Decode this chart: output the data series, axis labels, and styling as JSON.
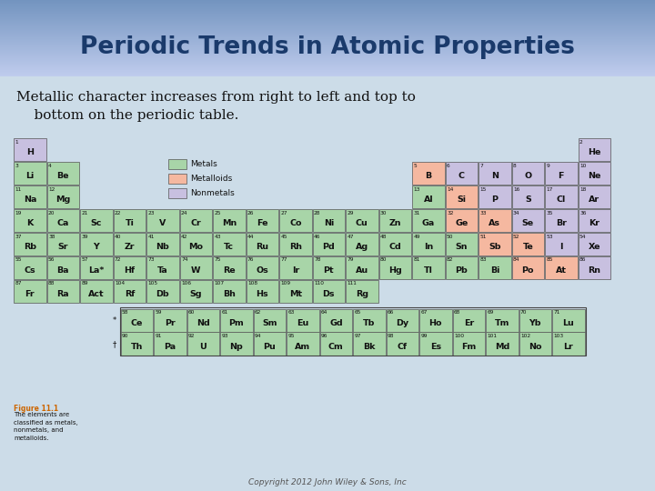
{
  "title": "Periodic Trends in Atomic Properties",
  "subtitle_line1": "Metallic character increases from right to left and top to",
  "subtitle_line2": "    bottom on the periodic table.",
  "title_color": "#1a3a6b",
  "subtitle_color": "#111111",
  "metal_color": "#a8d5a8",
  "metalloid_color": "#f5b8a0",
  "nonmetal_color": "#c8c0e0",
  "copyright": "Copyright 2012 John Wiley & Sons, Inc",
  "elements": [
    {
      "num": "1",
      "sym": "H",
      "row": 1,
      "col": 1,
      "type": "nonmetal"
    },
    {
      "num": "2",
      "sym": "He",
      "row": 1,
      "col": 18,
      "type": "nonmetal"
    },
    {
      "num": "3",
      "sym": "Li",
      "row": 2,
      "col": 1,
      "type": "metal"
    },
    {
      "num": "4",
      "sym": "Be",
      "row": 2,
      "col": 2,
      "type": "metal"
    },
    {
      "num": "5",
      "sym": "B",
      "row": 2,
      "col": 13,
      "type": "metalloid"
    },
    {
      "num": "6",
      "sym": "C",
      "row": 2,
      "col": 14,
      "type": "nonmetal"
    },
    {
      "num": "7",
      "sym": "N",
      "row": 2,
      "col": 15,
      "type": "nonmetal"
    },
    {
      "num": "8",
      "sym": "O",
      "row": 2,
      "col": 16,
      "type": "nonmetal"
    },
    {
      "num": "9",
      "sym": "F",
      "row": 2,
      "col": 17,
      "type": "nonmetal"
    },
    {
      "num": "10",
      "sym": "Ne",
      "row": 2,
      "col": 18,
      "type": "nonmetal"
    },
    {
      "num": "11",
      "sym": "Na",
      "row": 3,
      "col": 1,
      "type": "metal"
    },
    {
      "num": "12",
      "sym": "Mg",
      "row": 3,
      "col": 2,
      "type": "metal"
    },
    {
      "num": "13",
      "sym": "Al",
      "row": 3,
      "col": 13,
      "type": "metal"
    },
    {
      "num": "14",
      "sym": "Si",
      "row": 3,
      "col": 14,
      "type": "metalloid"
    },
    {
      "num": "15",
      "sym": "P",
      "row": 3,
      "col": 15,
      "type": "nonmetal"
    },
    {
      "num": "16",
      "sym": "S",
      "row": 3,
      "col": 16,
      "type": "nonmetal"
    },
    {
      "num": "17",
      "sym": "Cl",
      "row": 3,
      "col": 17,
      "type": "nonmetal"
    },
    {
      "num": "18",
      "sym": "Ar",
      "row": 3,
      "col": 18,
      "type": "nonmetal"
    },
    {
      "num": "19",
      "sym": "K",
      "row": 4,
      "col": 1,
      "type": "metal"
    },
    {
      "num": "20",
      "sym": "Ca",
      "row": 4,
      "col": 2,
      "type": "metal"
    },
    {
      "num": "21",
      "sym": "Sc",
      "row": 4,
      "col": 3,
      "type": "metal"
    },
    {
      "num": "22",
      "sym": "Ti",
      "row": 4,
      "col": 4,
      "type": "metal"
    },
    {
      "num": "23",
      "sym": "V",
      "row": 4,
      "col": 5,
      "type": "metal"
    },
    {
      "num": "24",
      "sym": "Cr",
      "row": 4,
      "col": 6,
      "type": "metal"
    },
    {
      "num": "25",
      "sym": "Mn",
      "row": 4,
      "col": 7,
      "type": "metal"
    },
    {
      "num": "26",
      "sym": "Fe",
      "row": 4,
      "col": 8,
      "type": "metal"
    },
    {
      "num": "27",
      "sym": "Co",
      "row": 4,
      "col": 9,
      "type": "metal"
    },
    {
      "num": "28",
      "sym": "Ni",
      "row": 4,
      "col": 10,
      "type": "metal"
    },
    {
      "num": "29",
      "sym": "Cu",
      "row": 4,
      "col": 11,
      "type": "metal"
    },
    {
      "num": "30",
      "sym": "Zn",
      "row": 4,
      "col": 12,
      "type": "metal"
    },
    {
      "num": "31",
      "sym": "Ga",
      "row": 4,
      "col": 13,
      "type": "metal"
    },
    {
      "num": "32",
      "sym": "Ge",
      "row": 4,
      "col": 14,
      "type": "metalloid"
    },
    {
      "num": "33",
      "sym": "As",
      "row": 4,
      "col": 15,
      "type": "metalloid"
    },
    {
      "num": "34",
      "sym": "Se",
      "row": 4,
      "col": 16,
      "type": "nonmetal"
    },
    {
      "num": "35",
      "sym": "Br",
      "row": 4,
      "col": 17,
      "type": "nonmetal"
    },
    {
      "num": "36",
      "sym": "Kr",
      "row": 4,
      "col": 18,
      "type": "nonmetal"
    },
    {
      "num": "37",
      "sym": "Rb",
      "row": 5,
      "col": 1,
      "type": "metal"
    },
    {
      "num": "38",
      "sym": "Sr",
      "row": 5,
      "col": 2,
      "type": "metal"
    },
    {
      "num": "39",
      "sym": "Y",
      "row": 5,
      "col": 3,
      "type": "metal"
    },
    {
      "num": "40",
      "sym": "Zr",
      "row": 5,
      "col": 4,
      "type": "metal"
    },
    {
      "num": "41",
      "sym": "Nb",
      "row": 5,
      "col": 5,
      "type": "metal"
    },
    {
      "num": "42",
      "sym": "Mo",
      "row": 5,
      "col": 6,
      "type": "metal"
    },
    {
      "num": "43",
      "sym": "Tc",
      "row": 5,
      "col": 7,
      "type": "metal"
    },
    {
      "num": "44",
      "sym": "Ru",
      "row": 5,
      "col": 8,
      "type": "metal"
    },
    {
      "num": "45",
      "sym": "Rh",
      "row": 5,
      "col": 9,
      "type": "metal"
    },
    {
      "num": "46",
      "sym": "Pd",
      "row": 5,
      "col": 10,
      "type": "metal"
    },
    {
      "num": "47",
      "sym": "Ag",
      "row": 5,
      "col": 11,
      "type": "metal"
    },
    {
      "num": "48",
      "sym": "Cd",
      "row": 5,
      "col": 12,
      "type": "metal"
    },
    {
      "num": "49",
      "sym": "In",
      "row": 5,
      "col": 13,
      "type": "metal"
    },
    {
      "num": "50",
      "sym": "Sn",
      "row": 5,
      "col": 14,
      "type": "metal"
    },
    {
      "num": "51",
      "sym": "Sb",
      "row": 5,
      "col": 15,
      "type": "metalloid"
    },
    {
      "num": "52",
      "sym": "Te",
      "row": 5,
      "col": 16,
      "type": "metalloid"
    },
    {
      "num": "53",
      "sym": "I",
      "row": 5,
      "col": 17,
      "type": "nonmetal"
    },
    {
      "num": "54",
      "sym": "Xe",
      "row": 5,
      "col": 18,
      "type": "nonmetal"
    },
    {
      "num": "55",
      "sym": "Cs",
      "row": 6,
      "col": 1,
      "type": "metal"
    },
    {
      "num": "56",
      "sym": "Ba",
      "row": 6,
      "col": 2,
      "type": "metal"
    },
    {
      "num": "57",
      "sym": "La*",
      "row": 6,
      "col": 3,
      "type": "metal"
    },
    {
      "num": "72",
      "sym": "Hf",
      "row": 6,
      "col": 4,
      "type": "metal"
    },
    {
      "num": "73",
      "sym": "Ta",
      "row": 6,
      "col": 5,
      "type": "metal"
    },
    {
      "num": "74",
      "sym": "W",
      "row": 6,
      "col": 6,
      "type": "metal"
    },
    {
      "num": "75",
      "sym": "Re",
      "row": 6,
      "col": 7,
      "type": "metal"
    },
    {
      "num": "76",
      "sym": "Os",
      "row": 6,
      "col": 8,
      "type": "metal"
    },
    {
      "num": "77",
      "sym": "Ir",
      "row": 6,
      "col": 9,
      "type": "metal"
    },
    {
      "num": "78",
      "sym": "Pt",
      "row": 6,
      "col": 10,
      "type": "metal"
    },
    {
      "num": "79",
      "sym": "Au",
      "row": 6,
      "col": 11,
      "type": "metal"
    },
    {
      "num": "80",
      "sym": "Hg",
      "row": 6,
      "col": 12,
      "type": "metal"
    },
    {
      "num": "81",
      "sym": "Tl",
      "row": 6,
      "col": 13,
      "type": "metal"
    },
    {
      "num": "82",
      "sym": "Pb",
      "row": 6,
      "col": 14,
      "type": "metal"
    },
    {
      "num": "83",
      "sym": "Bi",
      "row": 6,
      "col": 15,
      "type": "metal"
    },
    {
      "num": "84",
      "sym": "Po",
      "row": 6,
      "col": 16,
      "type": "metalloid"
    },
    {
      "num": "85",
      "sym": "At",
      "row": 6,
      "col": 17,
      "type": "metalloid"
    },
    {
      "num": "86",
      "sym": "Rn",
      "row": 6,
      "col": 18,
      "type": "nonmetal"
    },
    {
      "num": "87",
      "sym": "Fr",
      "row": 7,
      "col": 1,
      "type": "metal"
    },
    {
      "num": "88",
      "sym": "Ra",
      "row": 7,
      "col": 2,
      "type": "metal"
    },
    {
      "num": "89",
      "sym": "Act",
      "row": 7,
      "col": 3,
      "type": "metal"
    },
    {
      "num": "104",
      "sym": "Rf",
      "row": 7,
      "col": 4,
      "type": "metal"
    },
    {
      "num": "105",
      "sym": "Db",
      "row": 7,
      "col": 5,
      "type": "metal"
    },
    {
      "num": "106",
      "sym": "Sg",
      "row": 7,
      "col": 6,
      "type": "metal"
    },
    {
      "num": "107",
      "sym": "Bh",
      "row": 7,
      "col": 7,
      "type": "metal"
    },
    {
      "num": "108",
      "sym": "Hs",
      "row": 7,
      "col": 8,
      "type": "metal"
    },
    {
      "num": "109",
      "sym": "Mt",
      "row": 7,
      "col": 9,
      "type": "metal"
    },
    {
      "num": "110",
      "sym": "Ds",
      "row": 7,
      "col": 10,
      "type": "metal"
    },
    {
      "num": "111",
      "sym": "Rg",
      "row": 7,
      "col": 11,
      "type": "metal"
    },
    {
      "num": "58",
      "sym": "Ce",
      "row": 9,
      "col": 4,
      "type": "metal"
    },
    {
      "num": "59",
      "sym": "Pr",
      "row": 9,
      "col": 5,
      "type": "metal"
    },
    {
      "num": "60",
      "sym": "Nd",
      "row": 9,
      "col": 6,
      "type": "metal"
    },
    {
      "num": "61",
      "sym": "Pm",
      "row": 9,
      "col": 7,
      "type": "metal"
    },
    {
      "num": "62",
      "sym": "Sm",
      "row": 9,
      "col": 8,
      "type": "metal"
    },
    {
      "num": "63",
      "sym": "Eu",
      "row": 9,
      "col": 9,
      "type": "metal"
    },
    {
      "num": "64",
      "sym": "Gd",
      "row": 9,
      "col": 10,
      "type": "metal"
    },
    {
      "num": "65",
      "sym": "Tb",
      "row": 9,
      "col": 11,
      "type": "metal"
    },
    {
      "num": "66",
      "sym": "Dy",
      "row": 9,
      "col": 12,
      "type": "metal"
    },
    {
      "num": "67",
      "sym": "Ho",
      "row": 9,
      "col": 13,
      "type": "metal"
    },
    {
      "num": "68",
      "sym": "Er",
      "row": 9,
      "col": 14,
      "type": "metal"
    },
    {
      "num": "69",
      "sym": "Tm",
      "row": 9,
      "col": 15,
      "type": "metal"
    },
    {
      "num": "70",
      "sym": "Yb",
      "row": 9,
      "col": 16,
      "type": "metal"
    },
    {
      "num": "71",
      "sym": "Lu",
      "row": 9,
      "col": 17,
      "type": "metal"
    },
    {
      "num": "90",
      "sym": "Th",
      "row": 10,
      "col": 4,
      "type": "metal"
    },
    {
      "num": "91",
      "sym": "Pa",
      "row": 10,
      "col": 5,
      "type": "metal"
    },
    {
      "num": "92",
      "sym": "U",
      "row": 10,
      "col": 6,
      "type": "metal"
    },
    {
      "num": "93",
      "sym": "Np",
      "row": 10,
      "col": 7,
      "type": "metal"
    },
    {
      "num": "94",
      "sym": "Pu",
      "row": 10,
      "col": 8,
      "type": "metal"
    },
    {
      "num": "95",
      "sym": "Am",
      "row": 10,
      "col": 9,
      "type": "metal"
    },
    {
      "num": "96",
      "sym": "Cm",
      "row": 10,
      "col": 10,
      "type": "metal"
    },
    {
      "num": "97",
      "sym": "Bk",
      "row": 10,
      "col": 11,
      "type": "metal"
    },
    {
      "num": "98",
      "sym": "Cf",
      "row": 10,
      "col": 12,
      "type": "metal"
    },
    {
      "num": "99",
      "sym": "Es",
      "row": 10,
      "col": 13,
      "type": "metal"
    },
    {
      "num": "100",
      "sym": "Fm",
      "row": 10,
      "col": 14,
      "type": "metal"
    },
    {
      "num": "101",
      "sym": "Md",
      "row": 10,
      "col": 15,
      "type": "metal"
    },
    {
      "num": "102",
      "sym": "No",
      "row": 10,
      "col": 16,
      "type": "metal"
    },
    {
      "num": "103",
      "sym": "Lr",
      "row": 10,
      "col": 17,
      "type": "metal"
    }
  ]
}
